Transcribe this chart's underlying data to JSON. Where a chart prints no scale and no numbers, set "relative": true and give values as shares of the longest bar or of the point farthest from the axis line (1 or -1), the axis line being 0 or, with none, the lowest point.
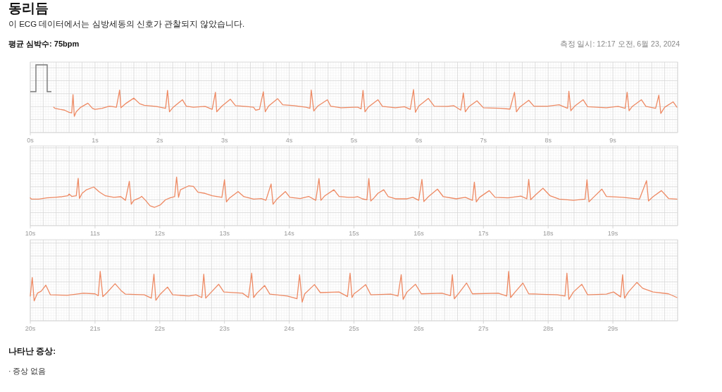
{
  "chart_data": [
    {
      "type": "line",
      "title": "동리듬",
      "subtitle": "이 ECG 데이터에서는 심방세동의 신호가 관찰되지 않았습니다.",
      "annotations": [
        "평균 심박수: 75bpm",
        "측정 일시: 12:17 오전, 6월 23, 2024"
      ],
      "relative": true,
      "grid": true,
      "xlim": [
        0,
        10
      ],
      "xticks": [
        {
          "value": 0,
          "label": "0s"
        },
        {
          "value": 1,
          "label": "1s"
        },
        {
          "value": 2,
          "label": "2s"
        },
        {
          "value": 3,
          "label": "3s"
        },
        {
          "value": 4,
          "label": "4s"
        },
        {
          "value": 5,
          "label": "5s"
        },
        {
          "value": 6,
          "label": "6s"
        },
        {
          "value": 7,
          "label": "7s"
        },
        {
          "value": 8,
          "label": "8s"
        },
        {
          "value": 9,
          "label": "9s"
        }
      ],
      "x": [
        0.36,
        0.38,
        0.46,
        0.53,
        0.6,
        0.64,
        0.66,
        0.68,
        0.71,
        0.78,
        0.89,
        0.96,
        1.0,
        1.11,
        1.22,
        1.25,
        1.33,
        1.38,
        1.4,
        1.47,
        1.6,
        1.69,
        1.76,
        1.94,
        2.09,
        2.12,
        2.15,
        2.2,
        2.35,
        2.41,
        2.52,
        2.7,
        2.81,
        2.86,
        2.88,
        2.96,
        3.09,
        3.17,
        3.32,
        3.45,
        3.48,
        3.54,
        3.6,
        3.63,
        3.68,
        3.82,
        3.9,
        4.08,
        4.26,
        4.32,
        4.34,
        4.38,
        4.44,
        4.59,
        4.64,
        4.8,
        5.0,
        5.06,
        5.11,
        5.14,
        5.17,
        5.22,
        5.37,
        5.44,
        5.64,
        5.78,
        5.87,
        5.92,
        5.95,
        6.0,
        6.15,
        6.24,
        6.44,
        6.54,
        6.65,
        6.69,
        6.72,
        6.78,
        6.9,
        7.0,
        7.27,
        7.41,
        7.48,
        7.51,
        7.56,
        7.7,
        7.78,
        7.99,
        8.17,
        8.3,
        8.32,
        8.35,
        8.41,
        8.54,
        8.61,
        8.9,
        9.08,
        9.19,
        9.22,
        9.25,
        9.3,
        9.44,
        9.51,
        9.66,
        9.71,
        9.74,
        9.8,
        9.93,
        9.99
      ],
      "series": [
        {
          "color": "#ee8a64",
          "values": [
            0.34,
            0.3,
            0.26,
            0.23,
            0.15,
            0.13,
            0.81,
            0,
            0.17,
            0.34,
            0.49,
            0.3,
            0.26,
            0.3,
            0.38,
            0.37,
            0.34,
            0.98,
            0.32,
            0.47,
            0.68,
            0.47,
            0.41,
            0.37,
            0.3,
            0.97,
            0.17,
            0.32,
            0.62,
            0.38,
            0.34,
            0.37,
            0.26,
            0.9,
            0.17,
            0.38,
            0.64,
            0.4,
            0.37,
            0.34,
            0.23,
            0.26,
            0.92,
            0.17,
            0.38,
            0.66,
            0.43,
            0.4,
            0.34,
            0.3,
            0.98,
            0.2,
            0.38,
            0.62,
            0.38,
            0.32,
            0.34,
            0.34,
            0.28,
            0.97,
            0.17,
            0.34,
            0.62,
            0.37,
            0.32,
            0.36,
            0.26,
            1,
            0.15,
            0.38,
            0.67,
            0.38,
            0.37,
            0.4,
            0.23,
            0.87,
            0.17,
            0.37,
            0.58,
            0.32,
            0.3,
            0.27,
            0.9,
            0.17,
            0.34,
            0.6,
            0.38,
            0.38,
            0.43,
            0.3,
            0.94,
            0.21,
            0.38,
            0.62,
            0.36,
            0.32,
            0.37,
            0.3,
            0.9,
            0.21,
            0.37,
            0.62,
            0.37,
            0.3,
            0.79,
            0.11,
            0.34,
            0.54,
            0.34
          ]
        }
      ]
    },
    {
      "type": "line",
      "relative": true,
      "grid": true,
      "xlim": [
        10,
        20
      ],
      "xticks": [
        {
          "value": 10,
          "label": "10s"
        },
        {
          "value": 11,
          "label": "11s"
        },
        {
          "value": 12,
          "label": "12s"
        },
        {
          "value": 13,
          "label": "13s"
        },
        {
          "value": 14,
          "label": "14s"
        },
        {
          "value": 15,
          "label": "15s"
        },
        {
          "value": 16,
          "label": "16s"
        },
        {
          "value": 17,
          "label": "17s"
        },
        {
          "value": 18,
          "label": "18s"
        },
        {
          "value": 19,
          "label": "19s"
        }
      ],
      "x": [
        10.0,
        10.02,
        10.13,
        10.26,
        10.38,
        10.49,
        10.58,
        10.6,
        10.64,
        10.71,
        10.74,
        10.76,
        10.8,
        10.87,
        10.98,
        11.07,
        11.16,
        11.29,
        11.4,
        11.47,
        11.53,
        11.56,
        11.6,
        11.69,
        11.72,
        11.78,
        11.85,
        11.92,
        12.01,
        12.09,
        12.16,
        12.23,
        12.26,
        12.29,
        12.32,
        12.45,
        12.52,
        12.59,
        12.7,
        12.81,
        12.96,
        13.0,
        13.03,
        13.08,
        13.21,
        13.3,
        13.45,
        13.57,
        13.64,
        13.72,
        13.75,
        13.81,
        13.94,
        14.01,
        14.17,
        14.3,
        14.41,
        14.46,
        14.49,
        14.55,
        14.69,
        14.77,
        14.91,
        15.0,
        15.06,
        15.13,
        15.2,
        15.23,
        15.26,
        15.31,
        15.37,
        15.46,
        15.53,
        15.64,
        15.82,
        15.91,
        16.0,
        16.05,
        16.08,
        16.15,
        16.29,
        16.38,
        16.58,
        16.72,
        16.83,
        16.86,
        16.89,
        16.94,
        17.09,
        17.18,
        17.38,
        17.58,
        17.67,
        17.7,
        17.73,
        17.81,
        17.92,
        18.03,
        18.17,
        18.39,
        18.57,
        18.6,
        18.63,
        18.7,
        18.83,
        18.9,
        19.15,
        19.41,
        19.52,
        19.55,
        19.62,
        19.75,
        19.86,
        19.99
      ],
      "series": [
        {
          "color": "#ee8a64",
          "values": [
            0.31,
            0.27,
            0.27,
            0.31,
            0.33,
            0.35,
            0.38,
            0.44,
            0.36,
            0.38,
            0.96,
            0.29,
            0.46,
            0.58,
            0.67,
            0.5,
            0.38,
            0.33,
            0.35,
            0.23,
            0.86,
            0.1,
            0.23,
            0.31,
            0.36,
            0.23,
            0.05,
            0,
            0.08,
            0.25,
            0.31,
            0.35,
            1,
            0.33,
            0.58,
            0.71,
            0.69,
            0.5,
            0.46,
            0.38,
            0.33,
            0.91,
            0.18,
            0.31,
            0.52,
            0.35,
            0.27,
            0.29,
            0.23,
            0.77,
            0.1,
            0.27,
            0.52,
            0.33,
            0.29,
            0.36,
            0.23,
            0.95,
            0.23,
            0.38,
            0.58,
            0.36,
            0.33,
            0.33,
            0.35,
            0.28,
            0.25,
            0.95,
            0.21,
            0.31,
            0.46,
            0.58,
            0.35,
            0.28,
            0.28,
            0.33,
            0.23,
            0.92,
            0.19,
            0.35,
            0.6,
            0.35,
            0.28,
            0.33,
            0.23,
            0.83,
            0.18,
            0.33,
            0.55,
            0.33,
            0.31,
            0.37,
            0.28,
            0.92,
            0.25,
            0.42,
            0.63,
            0.38,
            0.27,
            0.23,
            0.27,
            0.91,
            0.18,
            0.33,
            0.6,
            0.36,
            0.33,
            0.27,
            0.88,
            0.21,
            0.35,
            0.55,
            0.29,
            0.27
          ]
        }
      ]
    },
    {
      "type": "line",
      "annotations": [
        "나타난 증상:",
        "· 증상 없음"
      ],
      "relative": true,
      "grid": true,
      "xlim": [
        20,
        30
      ],
      "xticks": [
        {
          "value": 20,
          "label": "20s"
        },
        {
          "value": 21,
          "label": "21s"
        },
        {
          "value": 22,
          "label": "22s"
        },
        {
          "value": 23,
          "label": "23s"
        },
        {
          "value": 24,
          "label": "24s"
        },
        {
          "value": 25,
          "label": "25s"
        },
        {
          "value": 26,
          "label": "26s"
        },
        {
          "value": 27,
          "label": "27s"
        },
        {
          "value": 28,
          "label": "28s"
        },
        {
          "value": 29,
          "label": "29s"
        }
      ],
      "x": [
        20.0,
        20.03,
        20.06,
        20.11,
        20.17,
        20.24,
        20.31,
        20.57,
        20.82,
        21.0,
        21.05,
        21.08,
        21.12,
        21.18,
        21.31,
        21.4,
        21.47,
        21.76,
        21.87,
        21.91,
        21.94,
        22.0,
        22.12,
        22.2,
        22.45,
        22.56,
        22.65,
        22.68,
        22.71,
        22.78,
        22.91,
        22.99,
        23.28,
        23.37,
        23.42,
        23.45,
        23.5,
        23.62,
        23.7,
        23.97,
        24.12,
        24.16,
        24.2,
        24.24,
        24.39,
        24.48,
        24.77,
        24.9,
        24.94,
        24.97,
        25.0,
        25.06,
        25.18,
        25.26,
        25.57,
        25.68,
        25.73,
        25.76,
        25.82,
        25.95,
        26.04,
        26.36,
        26.49,
        26.52,
        26.55,
        26.62,
        26.74,
        26.83,
        27.23,
        27.36,
        27.39,
        27.42,
        27.49,
        27.61,
        27.7,
        28.14,
        28.26,
        28.29,
        28.32,
        28.39,
        28.52,
        28.61,
        28.9,
        29.01,
        29.12,
        29.15,
        29.18,
        29.24,
        29.37,
        29.46,
        29.62,
        29.86,
        29.99
      ],
      "series": [
        {
          "color": "#ee8a64",
          "values": [
            0.2,
            0.8,
            0.04,
            0.29,
            0.36,
            0.55,
            0.24,
            0.22,
            0.29,
            0.27,
            0.21,
            1,
            0.18,
            0.3,
            0.6,
            0.38,
            0.26,
            0.24,
            0.13,
            0.91,
            0.06,
            0.24,
            0.49,
            0.24,
            0.2,
            0.24,
            0.15,
            0.91,
            0.13,
            0.29,
            0.58,
            0.33,
            0.29,
            0.15,
            0.94,
            0.15,
            0.29,
            0.54,
            0.26,
            0.2,
            0.11,
            0.89,
            0,
            0.27,
            0.57,
            0.31,
            0.33,
            0.18,
            0.94,
            0.15,
            0.27,
            0.36,
            0.57,
            0.24,
            0.26,
            0.2,
            0.89,
            0.09,
            0.33,
            0.58,
            0.27,
            0.29,
            0.21,
            0.89,
            0.11,
            0.29,
            0.62,
            0.27,
            0.29,
            0.2,
            1,
            0.15,
            0.33,
            0.62,
            0.27,
            0.24,
            0.2,
            0.94,
            0.09,
            0.33,
            0.58,
            0.24,
            0.26,
            0.33,
            0.17,
            0.89,
            0.13,
            0.33,
            0.64,
            0.45,
            0.33,
            0.27,
            0.15
          ]
        }
      ]
    }
  ]
}
